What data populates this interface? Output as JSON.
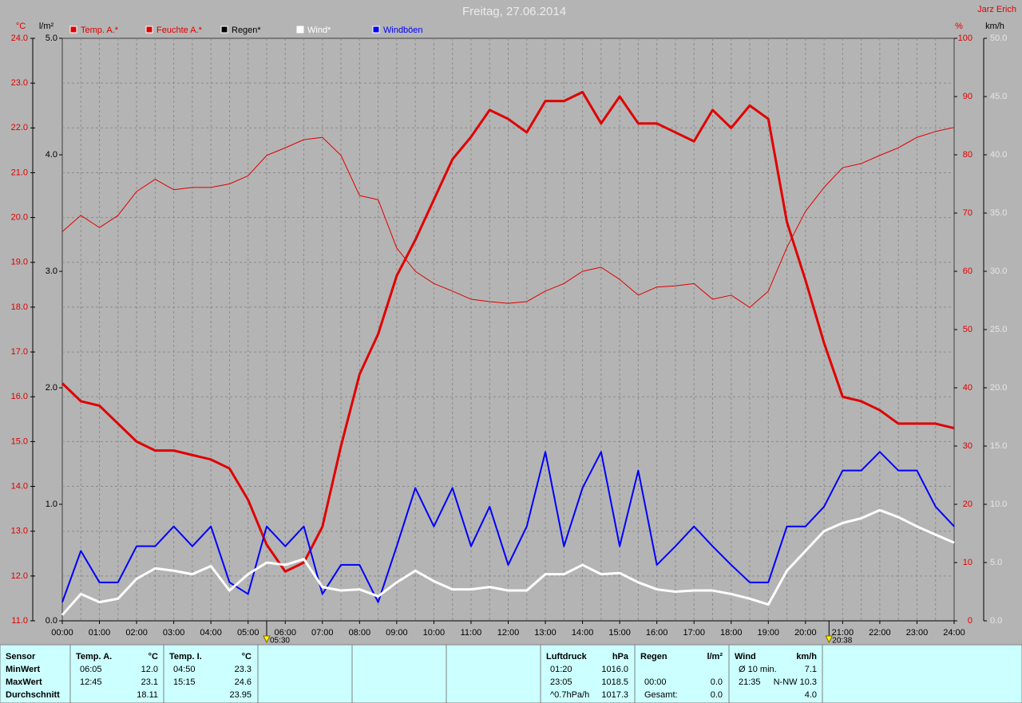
{
  "chart_data": {
    "type": "line",
    "title": "Freitag, 27.06.2014",
    "author": "Jarz Erich",
    "x": [
      0,
      0.5,
      1,
      1.5,
      2,
      2.5,
      3,
      3.5,
      4,
      4.5,
      5,
      5.5,
      6,
      6.5,
      7,
      7.5,
      8,
      8.5,
      9,
      9.5,
      10,
      10.5,
      11,
      11.5,
      12,
      12.5,
      13,
      13.5,
      14,
      14.5,
      15,
      15.5,
      16,
      16.5,
      17,
      17.5,
      18,
      18.5,
      19,
      19.5,
      20,
      20.5,
      21,
      21.5,
      22,
      22.5,
      23,
      23.5,
      24
    ],
    "xlim": [
      0,
      24
    ],
    "xticks": [
      {
        "value": 0,
        "label": "00:00"
      },
      {
        "value": 1,
        "label": "01:00"
      },
      {
        "value": 2,
        "label": "02:00"
      },
      {
        "value": 3,
        "label": "03:00"
      },
      {
        "value": 4,
        "label": "04:00"
      },
      {
        "value": 5,
        "label": "05:00"
      },
      {
        "value": 6,
        "label": "06:00"
      },
      {
        "value": 7,
        "label": "07:00"
      },
      {
        "value": 8,
        "label": "08:00"
      },
      {
        "value": 9,
        "label": "09:00"
      },
      {
        "value": 10,
        "label": "10:00"
      },
      {
        "value": 11,
        "label": "11:00"
      },
      {
        "value": 12,
        "label": "12:00"
      },
      {
        "value": 13,
        "label": "13:00"
      },
      {
        "value": 14,
        "label": "14:00"
      },
      {
        "value": 15,
        "label": "15:00"
      },
      {
        "value": 16,
        "label": "16:00"
      },
      {
        "value": 17,
        "label": "17:00"
      },
      {
        "value": 18,
        "label": "18:00"
      },
      {
        "value": 19,
        "label": "19:00"
      },
      {
        "value": 20,
        "label": "20:00"
      },
      {
        "value": 21,
        "label": "21:00"
      },
      {
        "value": 22,
        "label": "22:00"
      },
      {
        "value": 23,
        "label": "23:00"
      },
      {
        "value": 24,
        "label": "24:00"
      }
    ],
    "y_label": "°C",
    "ylim": [
      11,
      24
    ],
    "yticks": [
      {
        "value": 11,
        "label": "11.0"
      },
      {
        "value": 12,
        "label": "12.0"
      },
      {
        "value": 13,
        "label": "13.0"
      },
      {
        "value": 14,
        "label": "14.0"
      },
      {
        "value": 15,
        "label": "15.0"
      },
      {
        "value": 16,
        "label": "16.0"
      },
      {
        "value": 17,
        "label": "17.0"
      },
      {
        "value": 18,
        "label": "18.0"
      },
      {
        "value": 19,
        "label": "19.0"
      },
      {
        "value": 20,
        "label": "20.0"
      },
      {
        "value": 21,
        "label": "21.0"
      },
      {
        "value": 22,
        "label": "22.0"
      },
      {
        "value": 23,
        "label": "23.0"
      },
      {
        "value": 24,
        "label": "24.0"
      }
    ],
    "rain_label": "l/m²",
    "rain_lim": [
      0,
      5
    ],
    "rain_ticks": [
      {
        "value": 0,
        "label": "0.0"
      },
      {
        "value": 1,
        "label": "1.0"
      },
      {
        "value": 2,
        "label": "2.0"
      },
      {
        "value": 3,
        "label": "3.0"
      },
      {
        "value": 4,
        "label": "4.0"
      },
      {
        "value": 5,
        "label": "5.0"
      }
    ],
    "y2_label": "%",
    "y2lim": [
      0,
      100
    ],
    "y2ticks": [
      0,
      10,
      20,
      30,
      40,
      50,
      60,
      70,
      80,
      90,
      100
    ],
    "y3_label": "km/h",
    "y3lim": [
      0,
      50
    ],
    "y3ticks": [
      {
        "value": 0,
        "label": "0.0"
      },
      {
        "value": 5,
        "label": "5.0"
      },
      {
        "value": 10,
        "label": "10.0"
      },
      {
        "value": 15,
        "label": "15.0"
      },
      {
        "value": 20,
        "label": "20.0"
      },
      {
        "value": 25,
        "label": "25.0"
      },
      {
        "value": 30,
        "label": "30.0"
      },
      {
        "value": 35,
        "label": "35.0"
      },
      {
        "value": 40,
        "label": "40.0"
      },
      {
        "value": 45,
        "label": "45.0"
      },
      {
        "value": 50,
        "label": "50.0"
      }
    ],
    "grid": true,
    "markers": [
      {
        "value": 5.5,
        "label": "05:30"
      },
      {
        "value": 20.633,
        "label": "20:38"
      }
    ],
    "series": [
      {
        "name": "Temp. A.*",
        "color": "#e00000",
        "axis": "y",
        "values": [
          16.3,
          15.9,
          15.8,
          15.4,
          15.0,
          14.8,
          14.8,
          14.7,
          14.6,
          14.4,
          13.7,
          12.7,
          12.1,
          12.3,
          13.1,
          14.9,
          16.5,
          17.4,
          18.7,
          19.5,
          20.4,
          21.3,
          21.8,
          22.4,
          22.2,
          21.9,
          22.6,
          22.6,
          22.8,
          22.1,
          22.7,
          22.1,
          22.1,
          21.9,
          21.7,
          22.4,
          22.0,
          22.5,
          22.2,
          19.9,
          18.6,
          17.2,
          16.0,
          15.9,
          15.7,
          15.4,
          15.4,
          15.4,
          15.3
        ]
      },
      {
        "name": "Feuchte A.*",
        "color": "#e00000",
        "axis": "y2",
        "values": [
          66.8,
          69.6,
          67.5,
          69.6,
          73.7,
          75.8,
          74.0,
          74.4,
          74.4,
          75.0,
          76.4,
          79.9,
          81.2,
          82.6,
          83.0,
          79.9,
          73.0,
          72.3,
          64.0,
          60.0,
          57.9,
          56.6,
          55.2,
          54.8,
          54.5,
          54.8,
          56.6,
          57.9,
          60.0,
          60.7,
          58.6,
          55.9,
          57.3,
          57.5,
          57.9,
          55.2,
          55.9,
          53.8,
          56.6,
          64.1,
          70.3,
          74.4,
          77.8,
          78.5,
          79.9,
          81.2,
          83.0,
          84.0,
          84.7
        ]
      },
      {
        "name": "Regen*",
        "color": "#000000",
        "axis": "rain",
        "values": [
          0,
          0,
          0,
          0,
          0,
          0,
          0,
          0,
          0,
          0,
          0,
          0,
          0,
          0,
          0,
          0,
          0,
          0,
          0,
          0,
          0,
          0,
          0,
          0,
          0,
          0,
          0,
          0,
          0,
          0,
          0,
          0,
          0,
          0,
          0,
          0,
          0,
          0,
          0,
          0,
          0,
          0,
          0,
          0,
          0,
          0,
          0,
          0,
          0
        ]
      },
      {
        "name": "Wind*",
        "color": "#ffffff",
        "axis": "y3",
        "values": [
          0.5,
          2.3,
          1.6,
          1.9,
          3.6,
          4.5,
          4.3,
          4.0,
          4.7,
          2.6,
          4.0,
          5.0,
          4.8,
          5.3,
          2.9,
          2.6,
          2.7,
          2.1,
          3.3,
          4.3,
          3.4,
          2.7,
          2.7,
          2.9,
          2.6,
          2.6,
          4.0,
          4.0,
          4.8,
          4.0,
          4.1,
          3.3,
          2.7,
          2.5,
          2.6,
          2.6,
          2.3,
          1.9,
          1.4,
          4.3,
          6.0,
          7.7,
          8.4,
          8.8,
          9.5,
          8.9,
          8.1,
          7.4,
          6.7
        ]
      },
      {
        "name": "Windböen",
        "color": "#0000ff",
        "axis": "y3",
        "values": [
          1.6,
          6.0,
          3.3,
          3.3,
          6.4,
          6.4,
          8.1,
          6.4,
          8.1,
          3.3,
          2.3,
          8.1,
          6.4,
          8.1,
          2.3,
          4.8,
          4.8,
          1.6,
          6.4,
          11.4,
          8.1,
          11.4,
          6.4,
          9.8,
          4.8,
          8.1,
          14.5,
          6.4,
          11.4,
          14.5,
          6.4,
          12.9,
          4.8,
          6.4,
          8.1,
          6.4,
          4.8,
          3.3,
          3.3,
          8.1,
          8.1,
          9.8,
          12.9,
          12.9,
          14.5,
          12.9,
          12.9,
          9.8,
          8.1
        ]
      }
    ]
  },
  "stats": {
    "sensor": [
      "Sensor",
      "MinWert",
      "MaxWert",
      "Durchschnitt"
    ],
    "sections": [
      {
        "title": "Temp. A.",
        "unit": "°C",
        "rows": [
          [
            "06:05",
            "12.0"
          ],
          [
            "12:45",
            "23.1"
          ],
          [
            "18.11"
          ]
        ]
      },
      {
        "title": "Temp. I.",
        "unit": "°C",
        "rows": [
          [
            "04:50",
            "23.3"
          ],
          [
            "15:15",
            "24.6"
          ],
          [
            "23.95"
          ]
        ]
      },
      {
        "title": "Luftdruck",
        "unit": "hPa",
        "rows": [
          [
            "01:20",
            "1016.0"
          ],
          [
            "23:05",
            "1018.5"
          ],
          [
            "^0.7hPa/h",
            "1017.3"
          ]
        ]
      },
      {
        "title": "Regen",
        "unit": "l/m²",
        "rows": [
          [],
          [
            "00:00",
            "0.0"
          ],
          [
            "Gesamt:",
            "0.0"
          ]
        ]
      },
      {
        "title": "Wind",
        "unit": "km/h",
        "rows": [
          [
            "Ø 10 min.",
            "7.1"
          ],
          [
            "21:35",
            "N-NW 10.3"
          ],
          [
            "4.0"
          ]
        ]
      }
    ]
  }
}
